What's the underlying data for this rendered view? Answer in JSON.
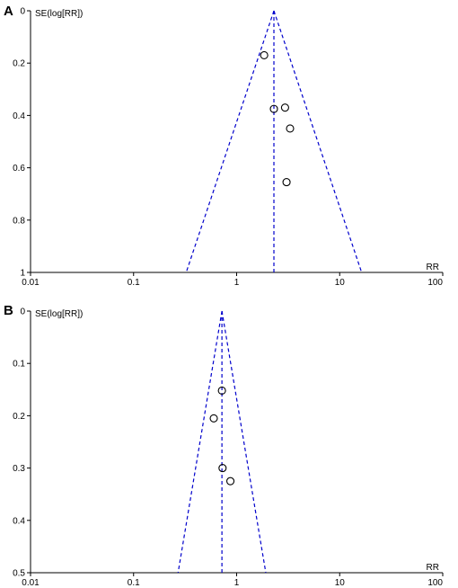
{
  "chart_data": [
    {
      "type": "scatter",
      "panel_label": "A",
      "title": "",
      "xlabel": "RR",
      "ylabel": "SE(log[RR])",
      "x_scale": "log",
      "xlim": [
        0.01,
        100
      ],
      "ylim": [
        1,
        0
      ],
      "x_ticks": [
        "0.01",
        "0.1",
        "1",
        "10",
        "100"
      ],
      "y_ticks": [
        "0",
        "0.2",
        "0.4",
        "0.6",
        "0.8",
        "1"
      ],
      "pooled_estimate": 2.3,
      "points": [
        {
          "x": 1.85,
          "y": 0.17
        },
        {
          "x": 2.3,
          "y": 0.375
        },
        {
          "x": 2.95,
          "y": 0.37
        },
        {
          "x": 3.3,
          "y": 0.45
        },
        {
          "x": 3.05,
          "y": 0.655
        }
      ],
      "colors": {
        "funnel": "#0000cc",
        "points": "#000000"
      }
    },
    {
      "type": "scatter",
      "panel_label": "B",
      "title": "",
      "xlabel": "RR",
      "ylabel": "SE(log[RR])",
      "x_scale": "log",
      "xlim": [
        0.01,
        100
      ],
      "ylim": [
        0.5,
        0
      ],
      "x_ticks": [
        "0.01",
        "0.1",
        "1",
        "10",
        "100"
      ],
      "y_ticks": [
        "0",
        "0.1",
        "0.2",
        "0.3",
        "0.4",
        "0.5"
      ],
      "pooled_estimate": 0.72,
      "points": [
        {
          "x": 0.72,
          "y": 0.152
        },
        {
          "x": 0.6,
          "y": 0.205
        },
        {
          "x": 0.73,
          "y": 0.3
        },
        {
          "x": 0.87,
          "y": 0.325
        }
      ],
      "colors": {
        "funnel": "#0000cc",
        "points": "#000000"
      }
    }
  ]
}
